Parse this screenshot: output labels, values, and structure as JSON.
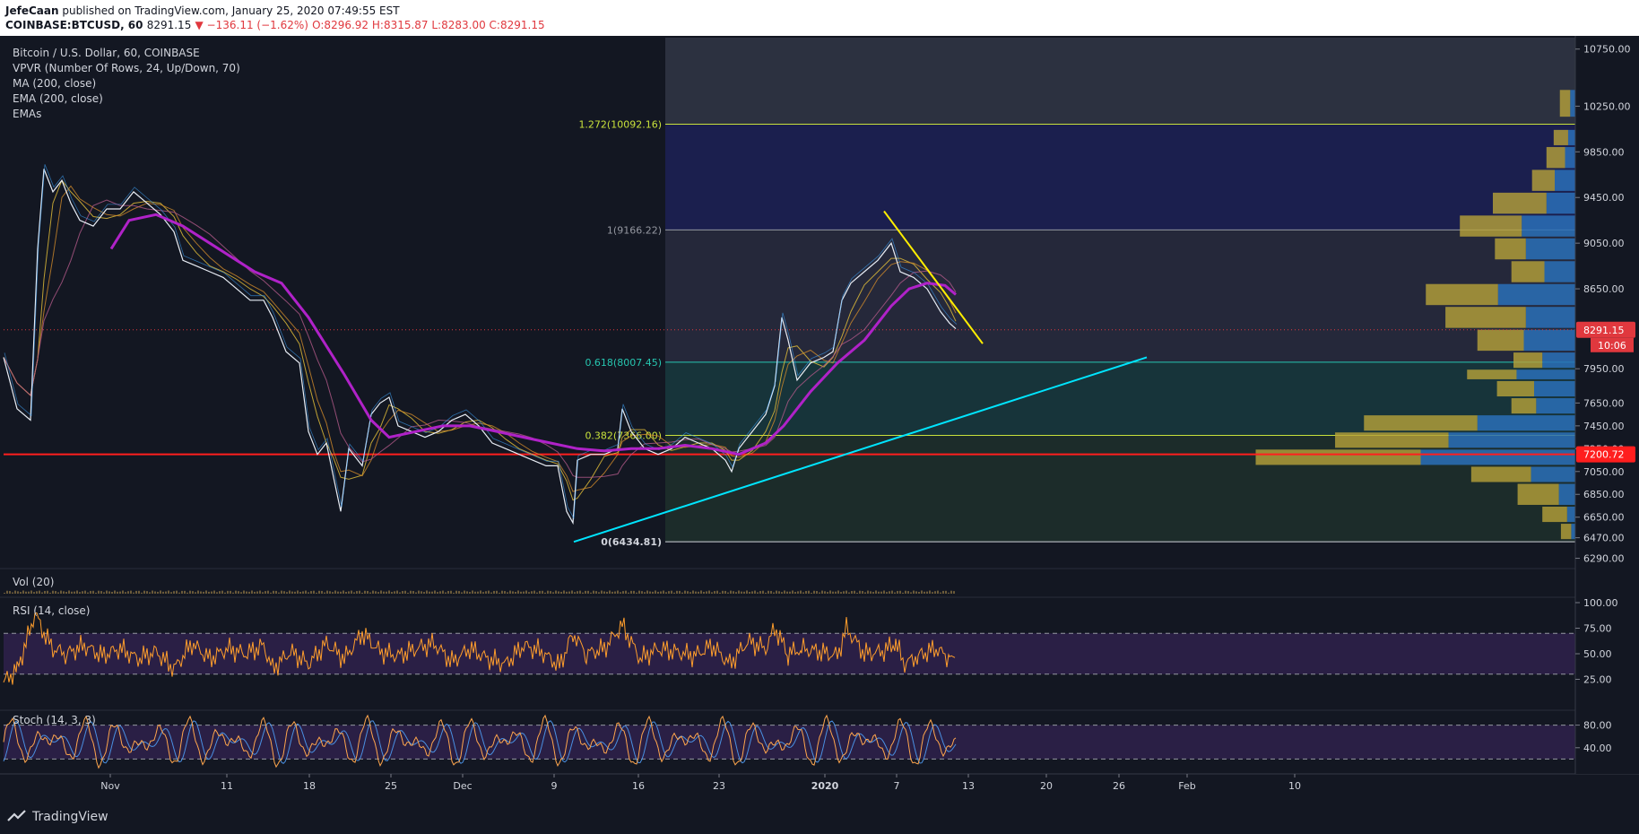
{
  "header": {
    "publisher": "JefeCaan",
    "published_text": "published on TradingView.com, January 25, 2020 07:49:55 EST",
    "symbol_line": "COINBASE:BTCUSD, 60",
    "price": "8291.15",
    "change": "▼ −136.11 (−1.62%)",
    "ohlc": "O:8296.92 H:8315.87 L:8283.00 C:8291.15"
  },
  "legend": {
    "title": "Bitcoin / U.S. Dollar, 60, COINBASE",
    "items": [
      "VPVR (Number Of Rows, 24, Up/Down, 70)",
      "MA (200, close)",
      "EMA (200, close)",
      "EMAs"
    ]
  },
  "panes": {
    "vol": "Vol (20)",
    "rsi": "RSI (14, close)",
    "stoch": "Stoch (14, 3, 3)"
  },
  "footer": {
    "brand": "TradingView"
  },
  "colors": {
    "bg": "#131722",
    "red_level": "#ff1e1e",
    "trend_up": "#00e5ff",
    "trend_down": "#ffee00",
    "ma": "#b022c8",
    "rsi": "#ff9e2c",
    "stoch_k": "#ffa64d",
    "stoch_d": "#4a90e2"
  },
  "chart_data": [
    {
      "type": "line",
      "name": "price",
      "x_ticks": [
        "Nov",
        "11",
        "18",
        "25",
        "Dec",
        "9",
        "16",
        "23",
        "2020",
        "7",
        "13",
        "20",
        "26",
        "Feb",
        "10"
      ],
      "y_ticks": [
        10750,
        10250,
        9850,
        9450,
        9050,
        8650,
        8291.15,
        7950,
        7650,
        7450,
        7250,
        7050,
        6850,
        6650,
        6470,
        6290
      ],
      "ylim": [
        6200,
        10850
      ],
      "last_price": "8291.15",
      "countdown": "10:06",
      "red_level": "7200.72",
      "fib_levels": [
        {
          "label": "1.272(10092.16)",
          "value": 10092.16
        },
        {
          "label": "1(9166.22)",
          "value": 9166.22
        },
        {
          "label": "0.618(8007.45)",
          "value": 8007.45
        },
        {
          "label": "0.382(7366.00)",
          "value": 7366.0
        },
        {
          "label": "0(6434.81)",
          "value": 6434.81
        }
      ],
      "path": [
        [
          0,
          8050
        ],
        [
          15,
          7600
        ],
        [
          30,
          7500
        ],
        [
          38,
          9000
        ],
        [
          45,
          9700
        ],
        [
          55,
          9500
        ],
        [
          65,
          9600
        ],
        [
          75,
          9400
        ],
        [
          85,
          9250
        ],
        [
          100,
          9200
        ],
        [
          115,
          9350
        ],
        [
          130,
          9350
        ],
        [
          145,
          9500
        ],
        [
          160,
          9400
        ],
        [
          175,
          9300
        ],
        [
          190,
          9150
        ],
        [
          200,
          8900
        ],
        [
          215,
          8850
        ],
        [
          230,
          8800
        ],
        [
          245,
          8750
        ],
        [
          260,
          8650
        ],
        [
          275,
          8550
        ],
        [
          290,
          8550
        ],
        [
          300,
          8400
        ],
        [
          315,
          8100
        ],
        [
          330,
          8000
        ],
        [
          340,
          7400
        ],
        [
          350,
          7200
        ],
        [
          360,
          7300
        ],
        [
          368,
          7000
        ],
        [
          376,
          6700
        ],
        [
          385,
          7250
        ],
        [
          400,
          7100
        ],
        [
          410,
          7550
        ],
        [
          420,
          7650
        ],
        [
          430,
          7700
        ],
        [
          440,
          7450
        ],
        [
          455,
          7400
        ],
        [
          470,
          7350
        ],
        [
          485,
          7400
        ],
        [
          500,
          7500
        ],
        [
          515,
          7550
        ],
        [
          530,
          7450
        ],
        [
          545,
          7300
        ],
        [
          560,
          7250
        ],
        [
          575,
          7200
        ],
        [
          590,
          7150
        ],
        [
          605,
          7100
        ],
        [
          618,
          7100
        ],
        [
          628,
          6700
        ],
        [
          635,
          6600
        ],
        [
          640,
          7150
        ],
        [
          655,
          7200
        ],
        [
          670,
          7200
        ],
        [
          685,
          7250
        ],
        [
          690,
          7600
        ],
        [
          700,
          7400
        ],
        [
          715,
          7250
        ],
        [
          730,
          7200
        ],
        [
          745,
          7250
        ],
        [
          760,
          7350
        ],
        [
          775,
          7300
        ],
        [
          790,
          7250
        ],
        [
          805,
          7150
        ],
        [
          812,
          7050
        ],
        [
          820,
          7250
        ],
        [
          835,
          7400
        ],
        [
          850,
          7550
        ],
        [
          860,
          7800
        ],
        [
          868,
          8400
        ],
        [
          875,
          8200
        ],
        [
          885,
          7850
        ],
        [
          900,
          8000
        ],
        [
          915,
          8050
        ],
        [
          925,
          8100
        ],
        [
          935,
          8550
        ],
        [
          945,
          8700
        ],
        [
          960,
          8800
        ],
        [
          975,
          8900
        ],
        [
          990,
          9050
        ],
        [
          1000,
          8800
        ],
        [
          1015,
          8750
        ],
        [
          1030,
          8650
        ],
        [
          1045,
          8450
        ],
        [
          1055,
          8350
        ],
        [
          1062,
          8300
        ]
      ],
      "ma": [
        [
          120,
          9000
        ],
        [
          140,
          9250
        ],
        [
          170,
          9300
        ],
        [
          200,
          9200
        ],
        [
          230,
          9050
        ],
        [
          260,
          8900
        ],
        [
          280,
          8800
        ],
        [
          310,
          8700
        ],
        [
          340,
          8400
        ],
        [
          380,
          7900
        ],
        [
          410,
          7500
        ],
        [
          430,
          7350
        ],
        [
          460,
          7400
        ],
        [
          490,
          7450
        ],
        [
          520,
          7450
        ],
        [
          550,
          7400
        ],
        [
          580,
          7350
        ],
        [
          610,
          7300
        ],
        [
          640,
          7250
        ],
        [
          670,
          7230
        ],
        [
          700,
          7250
        ],
        [
          730,
          7250
        ],
        [
          760,
          7280
        ],
        [
          790,
          7250
        ],
        [
          820,
          7200
        ],
        [
          850,
          7300
        ],
        [
          870,
          7450
        ],
        [
          900,
          7750
        ],
        [
          930,
          8000
        ],
        [
          960,
          8200
        ],
        [
          990,
          8500
        ],
        [
          1010,
          8650
        ],
        [
          1030,
          8700
        ],
        [
          1050,
          8680
        ],
        [
          1062,
          8600
        ]
      ],
      "trend_up": [
        [
          636,
          6434
        ],
        [
          1275,
          8050
        ]
      ],
      "trend_down": [
        [
          982,
          9330
        ],
        [
          1092,
          8170
        ]
      ],
      "vpvr": [
        {
          "price_lo": 10150,
          "price_hi": 10400,
          "up": 10,
          "down": 5
        },
        {
          "price_lo": 9900,
          "price_hi": 10050,
          "up": 14,
          "down": 7
        },
        {
          "price_lo": 9700,
          "price_hi": 9900,
          "up": 18,
          "down": 10
        },
        {
          "price_lo": 9500,
          "price_hi": 9700,
          "up": 22,
          "down": 20
        },
        {
          "price_lo": 9300,
          "price_hi": 9500,
          "up": 52,
          "down": 28
        },
        {
          "price_lo": 9100,
          "price_hi": 9300,
          "up": 60,
          "down": 52
        },
        {
          "price_lo": 8900,
          "price_hi": 9100,
          "up": 30,
          "down": 48
        },
        {
          "price_lo": 8700,
          "price_hi": 8900,
          "up": 32,
          "down": 30
        },
        {
          "price_lo": 8500,
          "price_hi": 8700,
          "up": 70,
          "down": 75
        },
        {
          "price_lo": 8300,
          "price_hi": 8500,
          "up": 78,
          "down": 48
        },
        {
          "price_lo": 8100,
          "price_hi": 8300,
          "up": 45,
          "down": 50
        },
        {
          "price_lo": 7950,
          "price_hi": 8100,
          "up": 28,
          "down": 32
        },
        {
          "price_lo": 7850,
          "price_hi": 7950,
          "up": 48,
          "down": 57
        },
        {
          "price_lo": 7700,
          "price_hi": 7850,
          "up": 36,
          "down": 40
        },
        {
          "price_lo": 7550,
          "price_hi": 7700,
          "up": 24,
          "down": 38
        },
        {
          "price_lo": 7400,
          "price_hi": 7550,
          "up": 110,
          "down": 95
        },
        {
          "price_lo": 7250,
          "price_hi": 7400,
          "up": 110,
          "down": 123
        },
        {
          "price_lo": 7100,
          "price_hi": 7250,
          "up": 160,
          "down": 150
        },
        {
          "price_lo": 6950,
          "price_hi": 7100,
          "up": 58,
          "down": 43
        },
        {
          "price_lo": 6750,
          "price_hi": 6950,
          "up": 40,
          "down": 16
        },
        {
          "price_lo": 6600,
          "price_hi": 6750,
          "up": 24,
          "down": 8
        },
        {
          "price_lo": 6450,
          "price_hi": 6600,
          "up": 10,
          "down": 4
        }
      ]
    },
    {
      "type": "line",
      "name": "RSI",
      "y_ticks": [
        100,
        75,
        50,
        25
      ],
      "ylim": [
        0,
        100
      ],
      "bands": [
        70,
        30
      ],
      "points": [
        [
          0,
          22
        ],
        [
          15,
          35
        ],
        [
          25,
          60
        ],
        [
          35,
          90
        ],
        [
          45,
          70
        ],
        [
          55,
          55
        ],
        [
          70,
          50
        ],
        [
          90,
          58
        ],
        [
          110,
          48
        ],
        [
          130,
          55
        ],
        [
          150,
          45
        ],
        [
          170,
          52
        ],
        [
          190,
          35
        ],
        [
          210,
          60
        ],
        [
          230,
          45
        ],
        [
          250,
          55
        ],
        [
          270,
          50
        ],
        [
          290,
          58
        ],
        [
          300,
          35
        ],
        [
          320,
          52
        ],
        [
          340,
          40
        ],
        [
          360,
          60
        ],
        [
          380,
          45
        ],
        [
          400,
          70
        ],
        [
          420,
          52
        ],
        [
          440,
          48
        ],
        [
          460,
          55
        ],
        [
          480,
          60
        ],
        [
          500,
          42
        ],
        [
          520,
          55
        ],
        [
          540,
          45
        ],
        [
          560,
          40
        ],
        [
          580,
          58
        ],
        [
          600,
          52
        ],
        [
          620,
          38
        ],
        [
          635,
          70
        ],
        [
          650,
          50
        ],
        [
          670,
          55
        ],
        [
          690,
          78
        ],
        [
          710,
          45
        ],
        [
          730,
          55
        ],
        [
          750,
          52
        ],
        [
          770,
          48
        ],
        [
          790,
          58
        ],
        [
          810,
          40
        ],
        [
          830,
          62
        ],
        [
          850,
          55
        ],
        [
          860,
          75
        ],
        [
          875,
          50
        ],
        [
          890,
          55
        ],
        [
          910,
          52
        ],
        [
          930,
          48
        ],
        [
          940,
          75
        ],
        [
          960,
          50
        ],
        [
          980,
          52
        ],
        [
          995,
          60
        ],
        [
          1005,
          40
        ],
        [
          1020,
          48
        ],
        [
          1040,
          55
        ],
        [
          1055,
          45
        ],
        [
          1062,
          43
        ]
      ]
    },
    {
      "type": "line",
      "name": "Stoch",
      "y_ticks": [
        80,
        40
      ],
      "ylim": [
        0,
        100
      ],
      "bands": [
        80,
        20
      ]
    }
  ]
}
